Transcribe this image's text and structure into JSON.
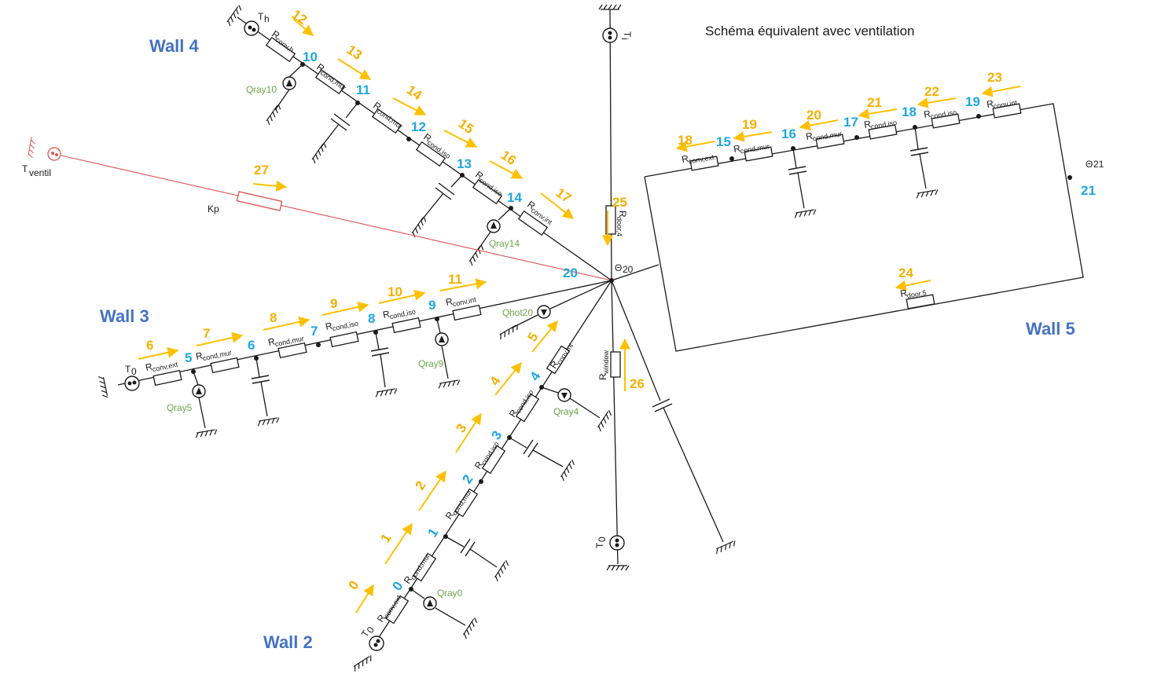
{
  "title": "Schéma équivalent avec ventilation",
  "walls": {
    "wall2": "Wall 2",
    "wall3": "Wall 3",
    "wall4": "Wall 4",
    "wall5": "Wall 5"
  },
  "resistors": {
    "conv_ext": {
      "main": "R",
      "sub": "conv,ext"
    },
    "cond_mur": {
      "main": "R",
      "sub": "cond,mur"
    },
    "cond_iso": {
      "main": "R",
      "sub": "cond,iso"
    },
    "conv_int": {
      "main": "R",
      "sub": "conv,int"
    },
    "conv_h": {
      "main": "R",
      "sub": "conv,h"
    },
    "door4": {
      "main": "R",
      "sub": "door,4"
    },
    "door5": {
      "main": "R",
      "sub": "door,5"
    },
    "window": {
      "main": "R",
      "sub": "window"
    },
    "kp": "Kp"
  },
  "temperatures": {
    "t0_main": "T",
    "t0_sub": "0",
    "th_main": "T",
    "th_sub": "h",
    "ti_main": "T",
    "ti_sub": "i",
    "tventil_main": "T",
    "tventil_sub": "ventil",
    "theta20_main": "Θ",
    "theta20_sub": "20",
    "theta21_main": "Θ",
    "theta21_sub": "21"
  },
  "sources": {
    "qray0": {
      "main": "Q",
      "sub": "ray0"
    },
    "qray4": {
      "main": "Q",
      "sub": "ray4"
    },
    "qray5": {
      "main": "Q",
      "sub": "ray5"
    },
    "qray9": {
      "main": "Q",
      "sub": "ray9"
    },
    "qray10": {
      "main": "Q",
      "sub": "ray10"
    },
    "qray14": {
      "main": "Q",
      "sub": "ray14"
    },
    "qhot20": {
      "main": "Q",
      "sub": "hot20"
    }
  },
  "nodes": [
    "0",
    "1",
    "2",
    "3",
    "4",
    "5",
    "6",
    "7",
    "8",
    "9",
    "10",
    "11",
    "12",
    "13",
    "14",
    "15",
    "16",
    "17",
    "18",
    "19",
    "20",
    "21"
  ],
  "flows": [
    "0",
    "1",
    "2",
    "3",
    "4",
    "5",
    "6",
    "7",
    "8",
    "9",
    "10",
    "11",
    "12",
    "13",
    "14",
    "15",
    "16",
    "17",
    "18",
    "19",
    "20",
    "21",
    "22",
    "23",
    "24",
    "25",
    "26",
    "27"
  ],
  "colors": {
    "wall_label": "#4472c4",
    "flow": "#ffc000",
    "node": "#1ea7e0",
    "source_label": "#6ca64a",
    "ventilation": "#d9534f"
  }
}
